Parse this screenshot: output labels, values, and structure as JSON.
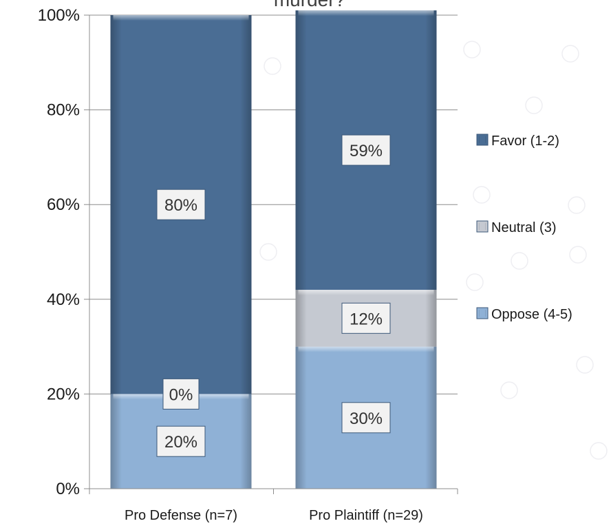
{
  "chart_data": {
    "type": "bar",
    "stacked": true,
    "percent": true,
    "title": "murder?",
    "categories": [
      "Pro Defense (n=7)",
      "Pro Plaintiff (n=29)"
    ],
    "series": [
      {
        "name": "Oppose (4-5)",
        "values": [
          20,
          30
        ],
        "labels": [
          "20%",
          "30%"
        ],
        "color": "#8fb1d6"
      },
      {
        "name": "Neutral (3)",
        "values": [
          0,
          12
        ],
        "labels": [
          "0%",
          "12%"
        ],
        "color": "#c5c9d1"
      },
      {
        "name": "Favor (1-2)",
        "values": [
          80,
          59
        ],
        "labels": [
          "80%",
          "59%"
        ],
        "color": "#4a6d94"
      }
    ],
    "legend_order": [
      "Favor (1-2)",
      "Neutral (3)",
      "Oppose (4-5)"
    ],
    "legend_position": "right",
    "y_ticks": [
      "0%",
      "20%",
      "40%",
      "60%",
      "80%",
      "100%"
    ],
    "ylim": [
      0,
      100
    ],
    "grid": true
  }
}
